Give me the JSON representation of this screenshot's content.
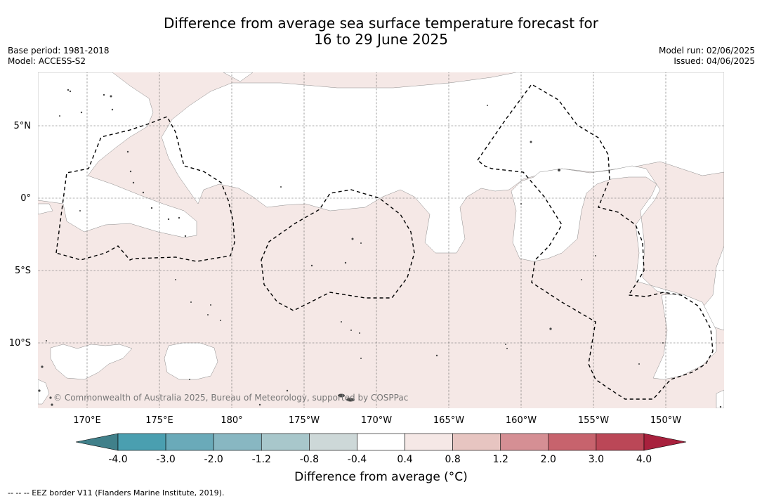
{
  "title_line1": "Difference from average sea surface temperature forecast for",
  "title_line2": "16 to 29 June 2025",
  "base_period": "Base period: 1981-2018",
  "model": "Model: ACCESS-S2",
  "model_run": "Model run: 02/06/2025",
  "issued": "Issued: 04/06/2025",
  "lat_labels": [
    "5°N",
    "0°",
    "5°S",
    "10°S"
  ],
  "lon_labels": [
    "170°E",
    "175°E",
    "180°",
    "175°W",
    "170°W",
    "165°W",
    "160°W",
    "155°W",
    "150°W"
  ],
  "copyright": "© Commonwealth of Australia 2025, Bureau of Meteorology, supported by COSPPac",
  "colorbar": {
    "title": "Difference from average (°C)",
    "ticks": [
      "-4.0",
      "-3.0",
      "-2.0",
      "-1.2",
      "-0.8",
      "-0.4",
      "0.4",
      "0.8",
      "1.2",
      "2.0",
      "3.0",
      "4.0"
    ],
    "colors": [
      "#4a9fb0",
      "#6aaab9",
      "#88b7c2",
      "#a8c7cb",
      "#cdd8d8",
      "#ffffff",
      "#f5e8e6",
      "#e7c5c1",
      "#d58f94",
      "#c7636d",
      "#bb4757"
    ],
    "under_color": "#40808a",
    "over_color": "#a8213d"
  },
  "footnote": "--  --  -- EEZ border V11 (Flanders Marine Institute, 2019)."
}
